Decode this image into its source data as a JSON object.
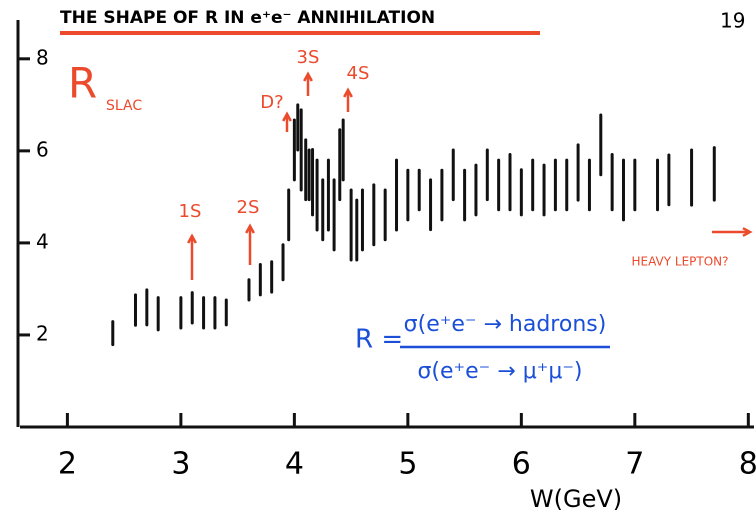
{
  "page_number": "19",
  "chart_data": {
    "type": "errorbar",
    "title": "THE SHAPE OF R IN e⁺e⁻ ANNIHILATION",
    "y_label": "R",
    "y_label_sub": "SLAC",
    "x_label": "W(GeV)",
    "color": "#111111",
    "x": [
      2.4,
      2.6,
      2.7,
      2.8,
      3.0,
      3.1,
      3.2,
      3.3,
      3.4,
      3.6,
      3.7,
      3.8,
      3.9,
      3.95,
      4.0,
      4.03,
      4.06,
      4.1,
      4.13,
      4.16,
      4.2,
      4.25,
      4.3,
      4.35,
      4.4,
      4.43,
      4.5,
      4.55,
      4.6,
      4.7,
      4.8,
      4.9,
      5.0,
      5.1,
      5.2,
      5.3,
      5.4,
      5.5,
      5.6,
      5.7,
      5.8,
      5.9,
      6.0,
      6.1,
      6.2,
      6.3,
      6.4,
      6.5,
      6.6,
      6.7,
      6.8,
      6.9,
      7.0,
      7.2,
      7.3,
      7.5,
      7.7
    ],
    "values": [
      2.04,
      2.54,
      2.6,
      2.46,
      2.48,
      2.59,
      2.48,
      2.48,
      2.49,
      2.98,
      3.2,
      3.26,
      3.58,
      4.61,
      6.02,
      6.51,
      6.02,
      5.59,
      5.48,
      5.32,
      5.04,
      4.72,
      5.04,
      4.61,
      5.7,
      6.02,
      4.39,
      4.28,
      4.5,
      4.61,
      4.61,
      5.04,
      5.04,
      5.15,
      4.83,
      5.04,
      5.48,
      5.04,
      5.15,
      5.48,
      5.26,
      5.32,
      5.1,
      5.26,
      5.15,
      5.26,
      5.26,
      5.53,
      5.26,
      6.13,
      5.32,
      5.15,
      5.26,
      5.26,
      5.37,
      5.42,
      5.5
    ],
    "errors": [
      0.25,
      0.33,
      0.38,
      0.35,
      0.33,
      0.33,
      0.33,
      0.33,
      0.27,
      0.22,
      0.33,
      0.33,
      0.38,
      0.54,
      0.65,
      0.49,
      0.87,
      0.65,
      0.54,
      0.71,
      0.76,
      0.65,
      0.76,
      0.76,
      0.76,
      0.65,
      0.76,
      0.65,
      0.65,
      0.65,
      0.54,
      0.76,
      0.54,
      0.43,
      0.54,
      0.54,
      0.54,
      0.54,
      0.54,
      0.54,
      0.54,
      0.6,
      0.49,
      0.54,
      0.54,
      0.54,
      0.54,
      0.6,
      0.54,
      0.65,
      0.6,
      0.65,
      0.54,
      0.54,
      0.54,
      0.6,
      0.57
    ],
    "xlim": [
      1.6,
      8.05
    ],
    "xticks": [
      2,
      3,
      4,
      5,
      6,
      7,
      8
    ],
    "ylim": [
      0,
      8.8
    ],
    "yticks": [
      2,
      4,
      6,
      8
    ],
    "annotations": [
      "1S",
      "2S",
      "D?",
      "3S",
      "4S",
      "HEAVY LEPTON?"
    ],
    "annotation_color": "#ec4a2c",
    "formula": {
      "lhs": "R =",
      "numerator": "σ(e⁺e⁻ → hadrons)",
      "denominator": "σ(e⁺e⁻ → μ⁺μ⁻)",
      "color": "#1b4fd8"
    }
  }
}
